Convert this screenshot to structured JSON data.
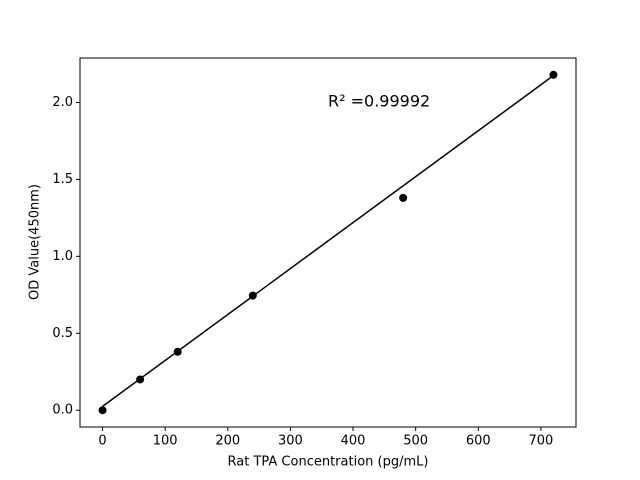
{
  "chart_data": {
    "type": "scatter",
    "x_label": "Rat TPA Concentration (pg/mL)",
    "y_label": "OD Value(450nm)",
    "annotation": "R² =0.99992",
    "x": [
      0,
      60,
      120,
      240,
      480,
      720
    ],
    "values": [
      0.0,
      0.2,
      0.38,
      0.745,
      1.38,
      2.18
    ],
    "color": "#000000",
    "fit_line": {
      "x": [
        0,
        720
      ],
      "values": [
        0.025,
        2.175
      ],
      "color": "#000000"
    },
    "xlim": [
      -36,
      756
    ],
    "xticks": [
      0,
      100,
      200,
      300,
      400,
      500,
      600,
      700
    ],
    "ylim": [
      -0.109,
      2.289
    ],
    "yticks": [
      {
        "value": 0,
        "label": "0.0"
      },
      0.5,
      {
        "value": 1,
        "label": "1.0"
      },
      1.5,
      {
        "value": 2,
        "label": "2.0"
      }
    ]
  }
}
